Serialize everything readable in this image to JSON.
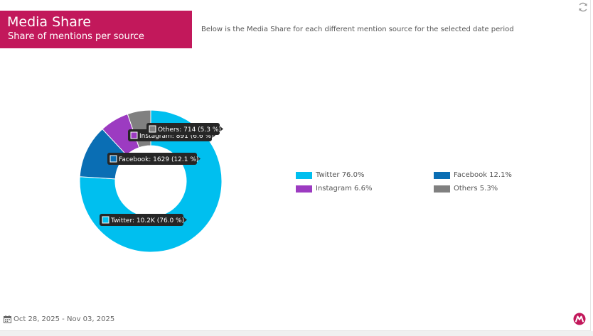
{
  "header": {
    "title": "Media Share",
    "subtitle": "Share of mentions per source",
    "description": "Below is the Media Share for each different mention source for the selected date period"
  },
  "footer": {
    "date_range": "Oct 28, 2025 - Nov 03, 2025"
  },
  "icons": {
    "refresh": "refresh-icon",
    "calendar": "calendar-icon",
    "brand": "brand-logo"
  },
  "colors": {
    "brand": "#c2185b"
  },
  "legend": [
    {
      "label": "Twitter 76.0%",
      "color": "#00bfef"
    },
    {
      "label": "Facebook 12.1%",
      "color": "#0a6eb4"
    },
    {
      "label": "Instagram 6.6%",
      "color": "#9c3bc1"
    },
    {
      "label": "Others 5.3%",
      "color": "#808080"
    }
  ],
  "chart_data": {
    "type": "pie",
    "donut": true,
    "series": [
      {
        "name": "Twitter",
        "value": 76.0,
        "color": "#00bfef",
        "label": "Twitter: 10.2K (76.0 %)"
      },
      {
        "name": "Facebook",
        "value": 12.1,
        "color": "#0a6eb4",
        "label": "Facebook: 1629 (12.1 %)"
      },
      {
        "name": "Instagram",
        "value": 6.6,
        "color": "#9c3bc1",
        "label": "Instagram: 891 (6.6 %)"
      },
      {
        "name": "Others",
        "value": 5.3,
        "color": "#808080",
        "label": "Others: 714 (5.3 %)"
      }
    ],
    "legend_position": "right"
  }
}
